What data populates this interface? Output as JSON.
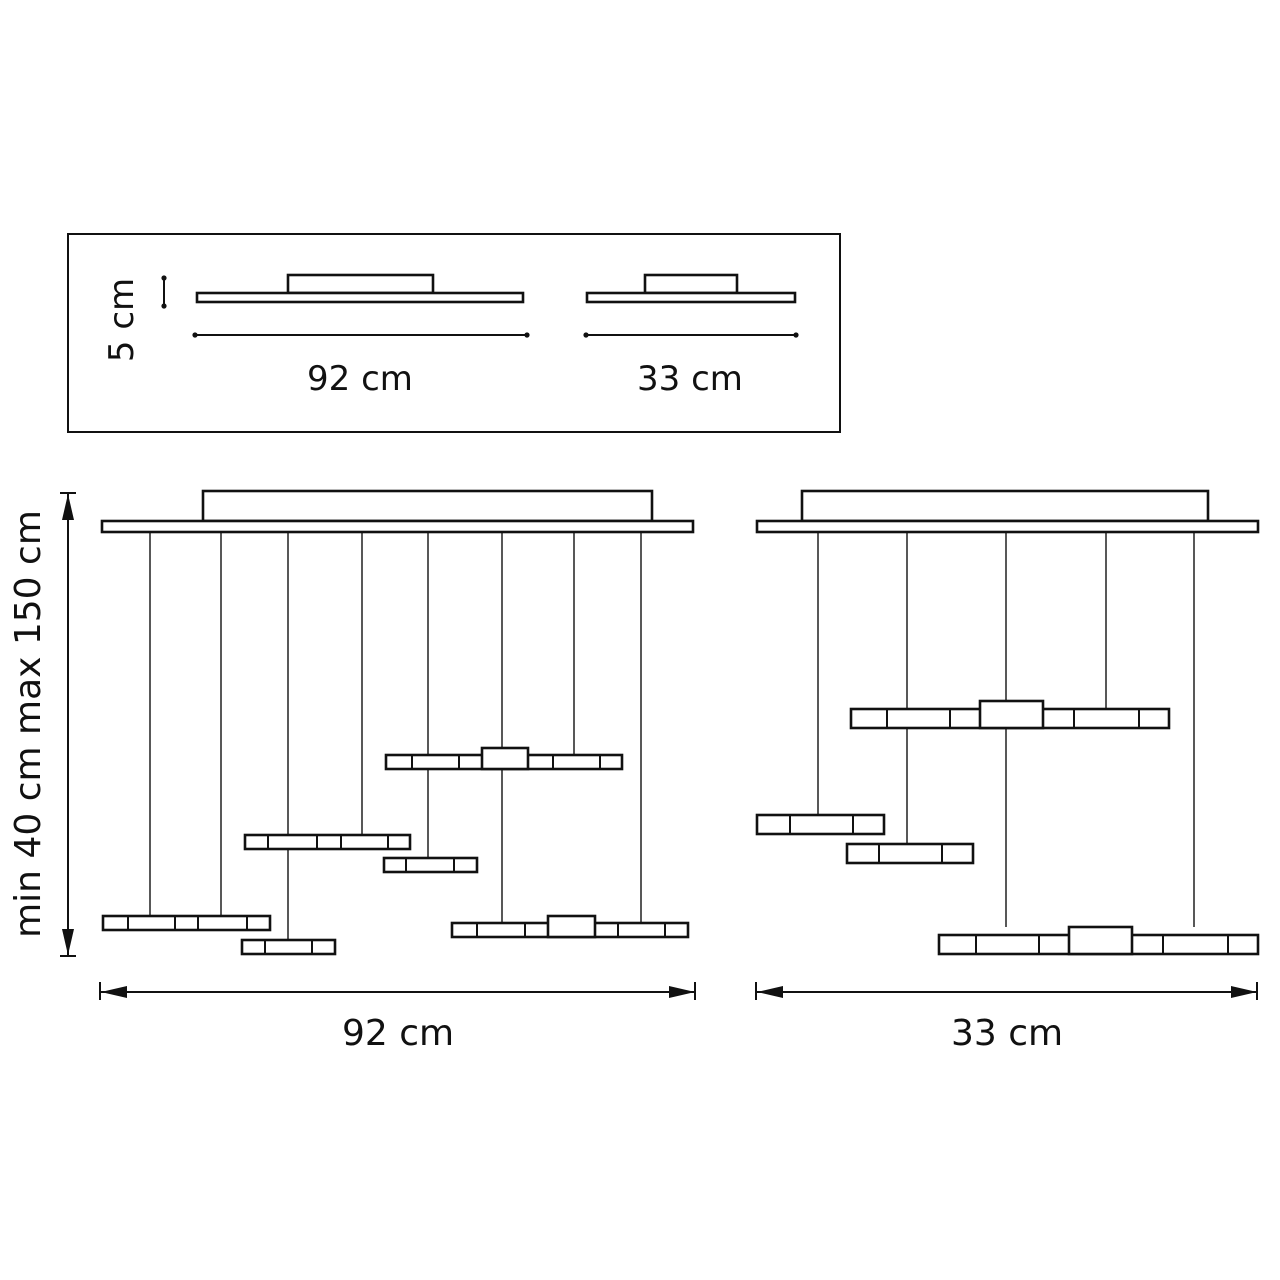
{
  "inset": {
    "height_label": "5 cm",
    "width_label_large": "92 cm",
    "width_label_small": "33 cm"
  },
  "main": {
    "height_label": "min 40 cm max 150 cm",
    "width_label_large": "92 cm",
    "width_label_small": "33 cm"
  },
  "colors": {
    "line": "#111111",
    "background": "#ffffff"
  }
}
